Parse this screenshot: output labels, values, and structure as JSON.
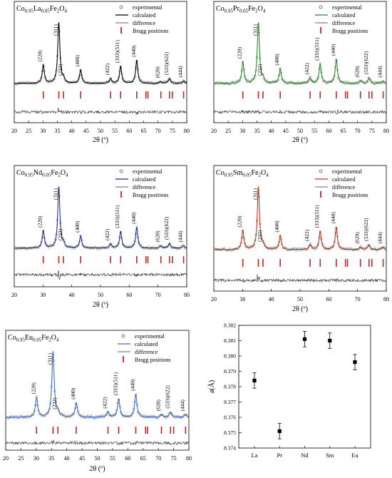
{
  "colors": {
    "axis": "#000000",
    "diff": "#333333",
    "bragg": "#cc2222",
    "marker": "#000000"
  },
  "chart_data": [
    {
      "type": "line",
      "panel_title": {
        "prefix": "Co",
        "sub1": "0.95",
        "element": "La",
        "sub2": "0.05",
        "rest1": "Fe",
        "sub3": "2",
        "rest2": "O",
        "sub4": "4"
      },
      "calc_color": "#000000",
      "exp_color": "#555555",
      "xlabel": "2θ (º)",
      "xlim": [
        20,
        80
      ],
      "xticks": [
        "20",
        "25",
        "30",
        "35",
        "40",
        "45",
        "50",
        "55",
        "60",
        "65",
        "70",
        "75",
        "80"
      ],
      "peaks": [
        {
          "x": 30.1,
          "h": 0.3,
          "label": "(220)"
        },
        {
          "x": 35.5,
          "h": 1.0,
          "label": "(311)"
        },
        {
          "x": 37.1,
          "h": 0.07,
          "label": "(222)"
        },
        {
          "x": 43.1,
          "h": 0.22,
          "label": "(400)"
        },
        {
          "x": 53.5,
          "h": 0.08,
          "label": "(422)"
        },
        {
          "x": 57.0,
          "h": 0.28,
          "label": "(333)(511)"
        },
        {
          "x": 62.6,
          "h": 0.38,
          "label": "(440)"
        },
        {
          "x": 71.0,
          "h": 0.03,
          "label": "(620)"
        },
        {
          "x": 74.0,
          "h": 0.08,
          "label": "(533)(622)"
        },
        {
          "x": 78.9,
          "h": 0.04,
          "label": "(444)"
        }
      ],
      "bragg": [
        30.1,
        35.5,
        37.1,
        43.1,
        53.5,
        57.0,
        62.6,
        65.8,
        66.5,
        71.0,
        74.0,
        75.0,
        78.9
      ],
      "legend": [
        "experimental",
        "calculated",
        "difference",
        "Bragg positions"
      ]
    },
    {
      "type": "line",
      "panel_title": {
        "prefix": "Co",
        "sub1": "0.95",
        "element": "Pr",
        "sub2": "0.05",
        "rest1": "Fe",
        "sub3": "2",
        "rest2": "O",
        "sub4": "4"
      },
      "calc_color": "#2a8a2a",
      "exp_color": "#555555",
      "xlabel": "2θ (º)",
      "xlim": [
        20,
        80
      ],
      "xticks": [
        "20",
        "25",
        "30",
        "35",
        "40",
        "45",
        "50",
        "55",
        "60",
        "65",
        "70",
        "75",
        "80"
      ],
      "peaks": [
        {
          "x": 30.1,
          "h": 0.35,
          "label": "(220)"
        },
        {
          "x": 35.5,
          "h": 1.0,
          "label": "(311)"
        },
        {
          "x": 37.1,
          "h": 0.07,
          "label": "(222)"
        },
        {
          "x": 43.1,
          "h": 0.24,
          "label": "(400)"
        },
        {
          "x": 53.5,
          "h": 0.09,
          "label": "(422)"
        },
        {
          "x": 57.0,
          "h": 0.32,
          "label": "(333)(511)"
        },
        {
          "x": 62.6,
          "h": 0.4,
          "label": "(440)"
        },
        {
          "x": 71.0,
          "h": 0.04,
          "label": "(620)"
        },
        {
          "x": 74.0,
          "h": 0.09,
          "label": "(533)(622)"
        },
        {
          "x": 78.9,
          "h": 0.04,
          "label": "(444)"
        }
      ],
      "bragg": [
        30.1,
        35.5,
        37.1,
        43.1,
        53.5,
        57.0,
        62.6,
        65.8,
        66.5,
        71.0,
        74.0,
        75.0,
        78.9
      ],
      "legend": [
        "experimental",
        "calculated",
        "difference",
        "Bragg positions"
      ]
    },
    {
      "type": "line",
      "panel_title": {
        "prefix": "Co",
        "sub1": "0.95",
        "element": "Nd",
        "sub2": "0.05",
        "rest1": "Fe",
        "sub3": "2",
        "rest2": "O",
        "sub4": "4"
      },
      "calc_color": "#1f2f8f",
      "exp_color": "#555555",
      "xlabel": "2θ (º)",
      "xlim": [
        20,
        80
      ],
      "xticks": [
        "20",
        "30",
        "40",
        "50",
        "60",
        "70",
        "80"
      ],
      "peaks": [
        {
          "x": 30.1,
          "h": 0.28,
          "label": "(220)"
        },
        {
          "x": 35.5,
          "h": 1.0,
          "label": "(311)"
        },
        {
          "x": 37.1,
          "h": 0.07,
          "label": "(222)"
        },
        {
          "x": 43.1,
          "h": 0.2,
          "label": "(400)"
        },
        {
          "x": 53.5,
          "h": 0.07,
          "label": "(422)"
        },
        {
          "x": 57.0,
          "h": 0.27,
          "label": "(333)(511)"
        },
        {
          "x": 62.6,
          "h": 0.34,
          "label": "(440)"
        },
        {
          "x": 71.0,
          "h": 0.04,
          "label": "(620)"
        },
        {
          "x": 74.0,
          "h": 0.08,
          "label": "(533)(622)"
        },
        {
          "x": 78.9,
          "h": 0.04,
          "label": "(444)"
        }
      ],
      "bragg": [
        30.1,
        35.5,
        37.1,
        43.1,
        53.5,
        57.0,
        62.6,
        65.8,
        66.5,
        71.0,
        74.0,
        75.0,
        78.9
      ],
      "legend": [
        "experimental",
        "calculated",
        "difference",
        "Bragg positions"
      ]
    },
    {
      "type": "line",
      "panel_title": {
        "prefix": "Co",
        "sub1": "0.95",
        "element": "Sm",
        "sub2": "0.05",
        "rest1": "Fe",
        "sub3": "2",
        "rest2": "O",
        "sub4": "4"
      },
      "calc_color": "#b83a1a",
      "exp_color": "#555555",
      "xlabel": "2θ (º)",
      "xlim": [
        20,
        80
      ],
      "xticks": [
        "20",
        "30",
        "40",
        "50",
        "60",
        "70",
        "80"
      ],
      "peaks": [
        {
          "x": 30.1,
          "h": 0.3,
          "label": "(220)"
        },
        {
          "x": 35.5,
          "h": 1.0,
          "label": "(311)"
        },
        {
          "x": 37.1,
          "h": 0.07,
          "label": "(222)"
        },
        {
          "x": 43.1,
          "h": 0.22,
          "label": "(400)"
        },
        {
          "x": 53.5,
          "h": 0.08,
          "label": "(422)"
        },
        {
          "x": 57.0,
          "h": 0.29,
          "label": "(333)(511)"
        },
        {
          "x": 62.6,
          "h": 0.36,
          "label": "(440)"
        },
        {
          "x": 71.0,
          "h": 0.04,
          "label": "(620)"
        },
        {
          "x": 74.0,
          "h": 0.08,
          "label": "(533)(622)"
        },
        {
          "x": 78.9,
          "h": 0.04,
          "label": "(444)"
        }
      ],
      "bragg": [
        30.1,
        35.5,
        37.1,
        43.1,
        53.5,
        57.0,
        62.6,
        65.8,
        66.5,
        71.0,
        74.0,
        75.0,
        78.9
      ],
      "legend": [
        "experimental",
        "calculated",
        "difference",
        "Bragg positions"
      ]
    },
    {
      "type": "line",
      "panel_title": {
        "prefix": "Co",
        "sub1": "0.95",
        "element": "Eu",
        "sub2": "0.05",
        "rest1": "Fe",
        "sub3": "2",
        "rest2": "O",
        "sub4": "4"
      },
      "calc_color": "#3a6fd0",
      "exp_color": "#555555",
      "xlabel": "2θ (º)",
      "xlim": [
        20,
        80
      ],
      "xticks": [
        "20",
        "25",
        "30",
        "35",
        "40",
        "45",
        "50",
        "55",
        "60",
        "65",
        "70",
        "75",
        "80"
      ],
      "peaks": [
        {
          "x": 30.1,
          "h": 0.3,
          "label": "(220)"
        },
        {
          "x": 35.5,
          "h": 1.0,
          "label": "(311)"
        },
        {
          "x": 37.1,
          "h": 0.07,
          "label": "(222)"
        },
        {
          "x": 43.1,
          "h": 0.22,
          "label": "(400)"
        },
        {
          "x": 53.5,
          "h": 0.08,
          "label": "(422)"
        },
        {
          "x": 57.0,
          "h": 0.28,
          "label": "(333)(511)"
        },
        {
          "x": 62.6,
          "h": 0.35,
          "label": "(440)"
        },
        {
          "x": 71.0,
          "h": 0.04,
          "label": "(620)"
        },
        {
          "x": 74.0,
          "h": 0.08,
          "label": "(533)(622)"
        },
        {
          "x": 78.9,
          "h": 0.04,
          "label": "(444)"
        }
      ],
      "bragg": [
        30.1,
        35.5,
        37.1,
        43.1,
        53.5,
        57.0,
        62.6,
        65.8,
        66.5,
        71.0,
        74.0,
        75.0,
        78.9
      ],
      "legend": [
        "experimental",
        "calculated",
        "difference",
        "Bragg positions"
      ]
    },
    {
      "type": "scatter",
      "categories": [
        "La",
        "Pr",
        "Nd",
        "Sm",
        "Eu"
      ],
      "values": [
        8.3784,
        8.3751,
        8.3811,
        8.381,
        8.3796
      ],
      "errors": [
        0.0005,
        0.0005,
        0.0005,
        0.0005,
        0.0005
      ],
      "ylabel": "a(Å)",
      "ylim": [
        8.374,
        8.382
      ],
      "yticks": [
        "8.374",
        "8.375",
        "8.376",
        "8.377",
        "8.378",
        "8.379",
        "8.380",
        "8.381",
        "8.382"
      ]
    }
  ]
}
